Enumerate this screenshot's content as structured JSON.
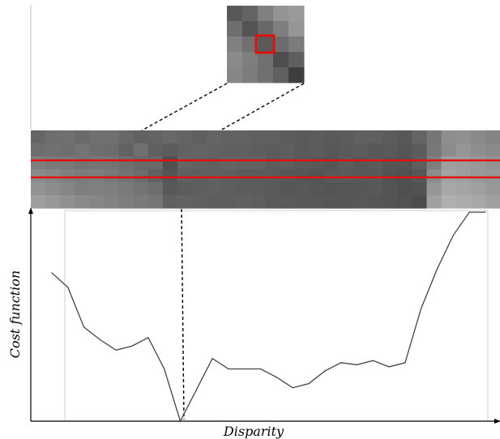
{
  "labels": {
    "x_axis": "Disparity",
    "y_axis": "Cost function"
  },
  "colors": {
    "highlight": "#e01010",
    "curve": "#444444",
    "axis": "#000000"
  },
  "patch_grays": [
    [
      88,
      100,
      128,
      148,
      154
    ],
    [
      110,
      84,
      104,
      126,
      150
    ],
    [
      128,
      112,
      90,
      108,
      124
    ],
    [
      138,
      126,
      112,
      78,
      96
    ],
    [
      134,
      124,
      112,
      96,
      62
    ]
  ],
  "strip_grays": [
    [
      102,
      110,
      112,
      106,
      112,
      112,
      104,
      98,
      100,
      104,
      100,
      96,
      100,
      98,
      98,
      96,
      96,
      92,
      90,
      92,
      90,
      92,
      96,
      96,
      92,
      88,
      100,
      118,
      142,
      144,
      138,
      132
    ],
    [
      110,
      112,
      110,
      116,
      110,
      108,
      98,
      112,
      96,
      92,
      98,
      100,
      98,
      96,
      96,
      94,
      92,
      94,
      90,
      92,
      88,
      90,
      92,
      88,
      90,
      86,
      92,
      120,
      140,
      150,
      142,
      138
    ],
    [
      126,
      122,
      122,
      116,
      118,
      116,
      110,
      104,
      104,
      80,
      100,
      98,
      96,
      100,
      98,
      98,
      92,
      94,
      90,
      88,
      86,
      92,
      88,
      90,
      86,
      84,
      94,
      126,
      158,
      156,
      152,
      146
    ],
    [
      138,
      134,
      128,
      124,
      126,
      120,
      114,
      108,
      96,
      84,
      96,
      94,
      96,
      94,
      92,
      92,
      90,
      88,
      86,
      84,
      88,
      90,
      88,
      88,
      82,
      80,
      86,
      140,
      162,
      158,
      152,
      150
    ],
    [
      146,
      140,
      134,
      126,
      128,
      126,
      122,
      116,
      110,
      88,
      92,
      94,
      96,
      94,
      92,
      92,
      90,
      86,
      88,
      86,
      84,
      86,
      86,
      88,
      84,
      80,
      82,
      150,
      168,
      164,
      160,
      152
    ],
    [
      158,
      152,
      144,
      138,
      134,
      130,
      126,
      122,
      118,
      96,
      98,
      96,
      94,
      94,
      96,
      94,
      90,
      90,
      88,
      88,
      86,
      86,
      88,
      86,
      84,
      82,
      76,
      160,
      176,
      172,
      168,
      160
    ]
  ],
  "chart_data": {
    "type": "line",
    "title": "",
    "xlabel": "Disparity",
    "ylabel": "Cost function",
    "x": [
      0,
      1,
      2,
      3,
      4,
      5,
      6,
      7,
      8,
      9,
      10,
      11,
      12,
      13,
      14,
      15,
      16,
      17,
      18,
      19,
      20,
      21,
      22,
      23,
      24,
      25,
      26,
      27
    ],
    "series": [
      {
        "values": [
          0.71,
          0.64,
          0.45,
          0.39,
          0.34,
          0.36,
          0.4,
          0.25,
          0.0,
          0.15,
          0.3,
          0.25,
          0.25,
          0.25,
          0.21,
          0.16,
          0.18,
          0.24,
          0.28,
          0.27,
          0.29,
          0.26,
          0.28,
          0.54,
          0.73,
          0.89,
          1.0,
          1.0
        ]
      }
    ],
    "grid": false,
    "legend": "none"
  }
}
